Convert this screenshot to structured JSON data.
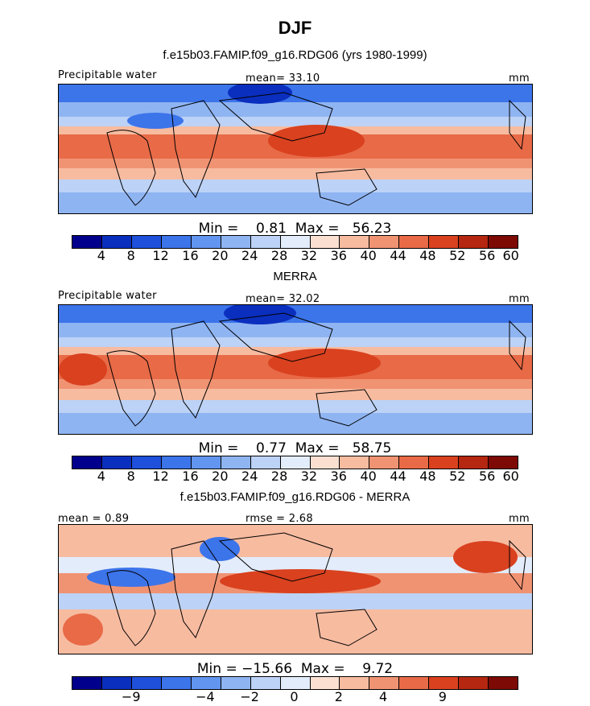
{
  "title": "DJF",
  "panels": [
    {
      "title": "f.e15b03.FAMIP.f09_g16.RDG06 (yrs 1980-1999)",
      "left_label": "Precipitable water",
      "center_label": "mean=   33.10",
      "right_label": "mm",
      "minmax": "Min =    0.81  Max =   56.23",
      "colorbar_ticks": [
        "4",
        "8",
        "12",
        "16",
        "20",
        "24",
        "28",
        "32",
        "36",
        "40",
        "44",
        "48",
        "52",
        "56",
        "60"
      ]
    },
    {
      "title": "MERRA",
      "left_label": "Precipitable water",
      "center_label": "mean=   32.02",
      "right_label": "mm",
      "minmax": "Min =    0.77  Max =   58.75",
      "colorbar_ticks": [
        "4",
        "8",
        "12",
        "16",
        "20",
        "24",
        "28",
        "32",
        "36",
        "40",
        "44",
        "48",
        "52",
        "56",
        "60"
      ]
    },
    {
      "title": "f.e15b03.FAMIP.f09_g16.RDG06 - MERRA",
      "left_label": "mean =    0.89",
      "center_label": "rmse =    2.68",
      "right_label": "mm",
      "minmax": "Min = −15.66  Max =    9.72",
      "colorbar_ticks": [
        "−9",
        "−4",
        "−2",
        "0",
        "2",
        "4",
        "9"
      ]
    }
  ],
  "colors": {
    "scale": [
      "#00008c",
      "#0a2fbf",
      "#1e50db",
      "#3c74ea",
      "#6295ef",
      "#8fb4f2",
      "#bcd2f6",
      "#e3ecfa",
      "#fbe0d2",
      "#f7bba0",
      "#f09373",
      "#e86a47",
      "#d9411f",
      "#b52710",
      "#7d0a05"
    ],
    "diff_scale": [
      "#00008c",
      "#0a2fbf",
      "#1e50db",
      "#3c74ea",
      "#6295ef",
      "#8fb4f2",
      "#bcd2f6",
      "#e3ecfa",
      "#fbe0d2",
      "#f7bba0",
      "#f09373",
      "#e86a47",
      "#d9411f",
      "#b52710",
      "#7d0a05"
    ]
  }
}
